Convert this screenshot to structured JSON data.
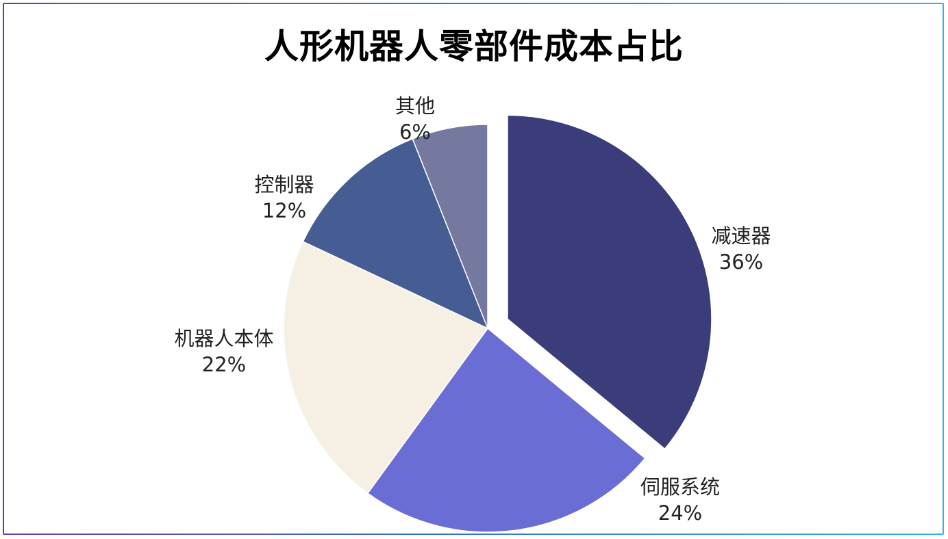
{
  "chart_data": {
    "type": "pie",
    "title": "人形机器人零部件成本占比",
    "slices": [
      {
        "name": "减速器",
        "value": 36,
        "label": "36%",
        "color": "#3b3d7a",
        "exploded": true
      },
      {
        "name": "伺服系统",
        "value": 24,
        "label": "24%",
        "color": "#6a6ed4",
        "exploded": false
      },
      {
        "name": "机器人本体",
        "value": 22,
        "label": "22%",
        "color": "#f6f0e4",
        "exploded": false
      },
      {
        "name": "控制器",
        "value": 12,
        "label": "12%",
        "color": "#455d92",
        "exploded": false
      },
      {
        "name": "其他",
        "value": 6,
        "label": "6%",
        "color": "#75799f",
        "exploded": false
      }
    ],
    "start_angle": "12 o'clock",
    "direction": "clockwise",
    "legend": "none",
    "data_labels": "outside, category name and percent"
  }
}
